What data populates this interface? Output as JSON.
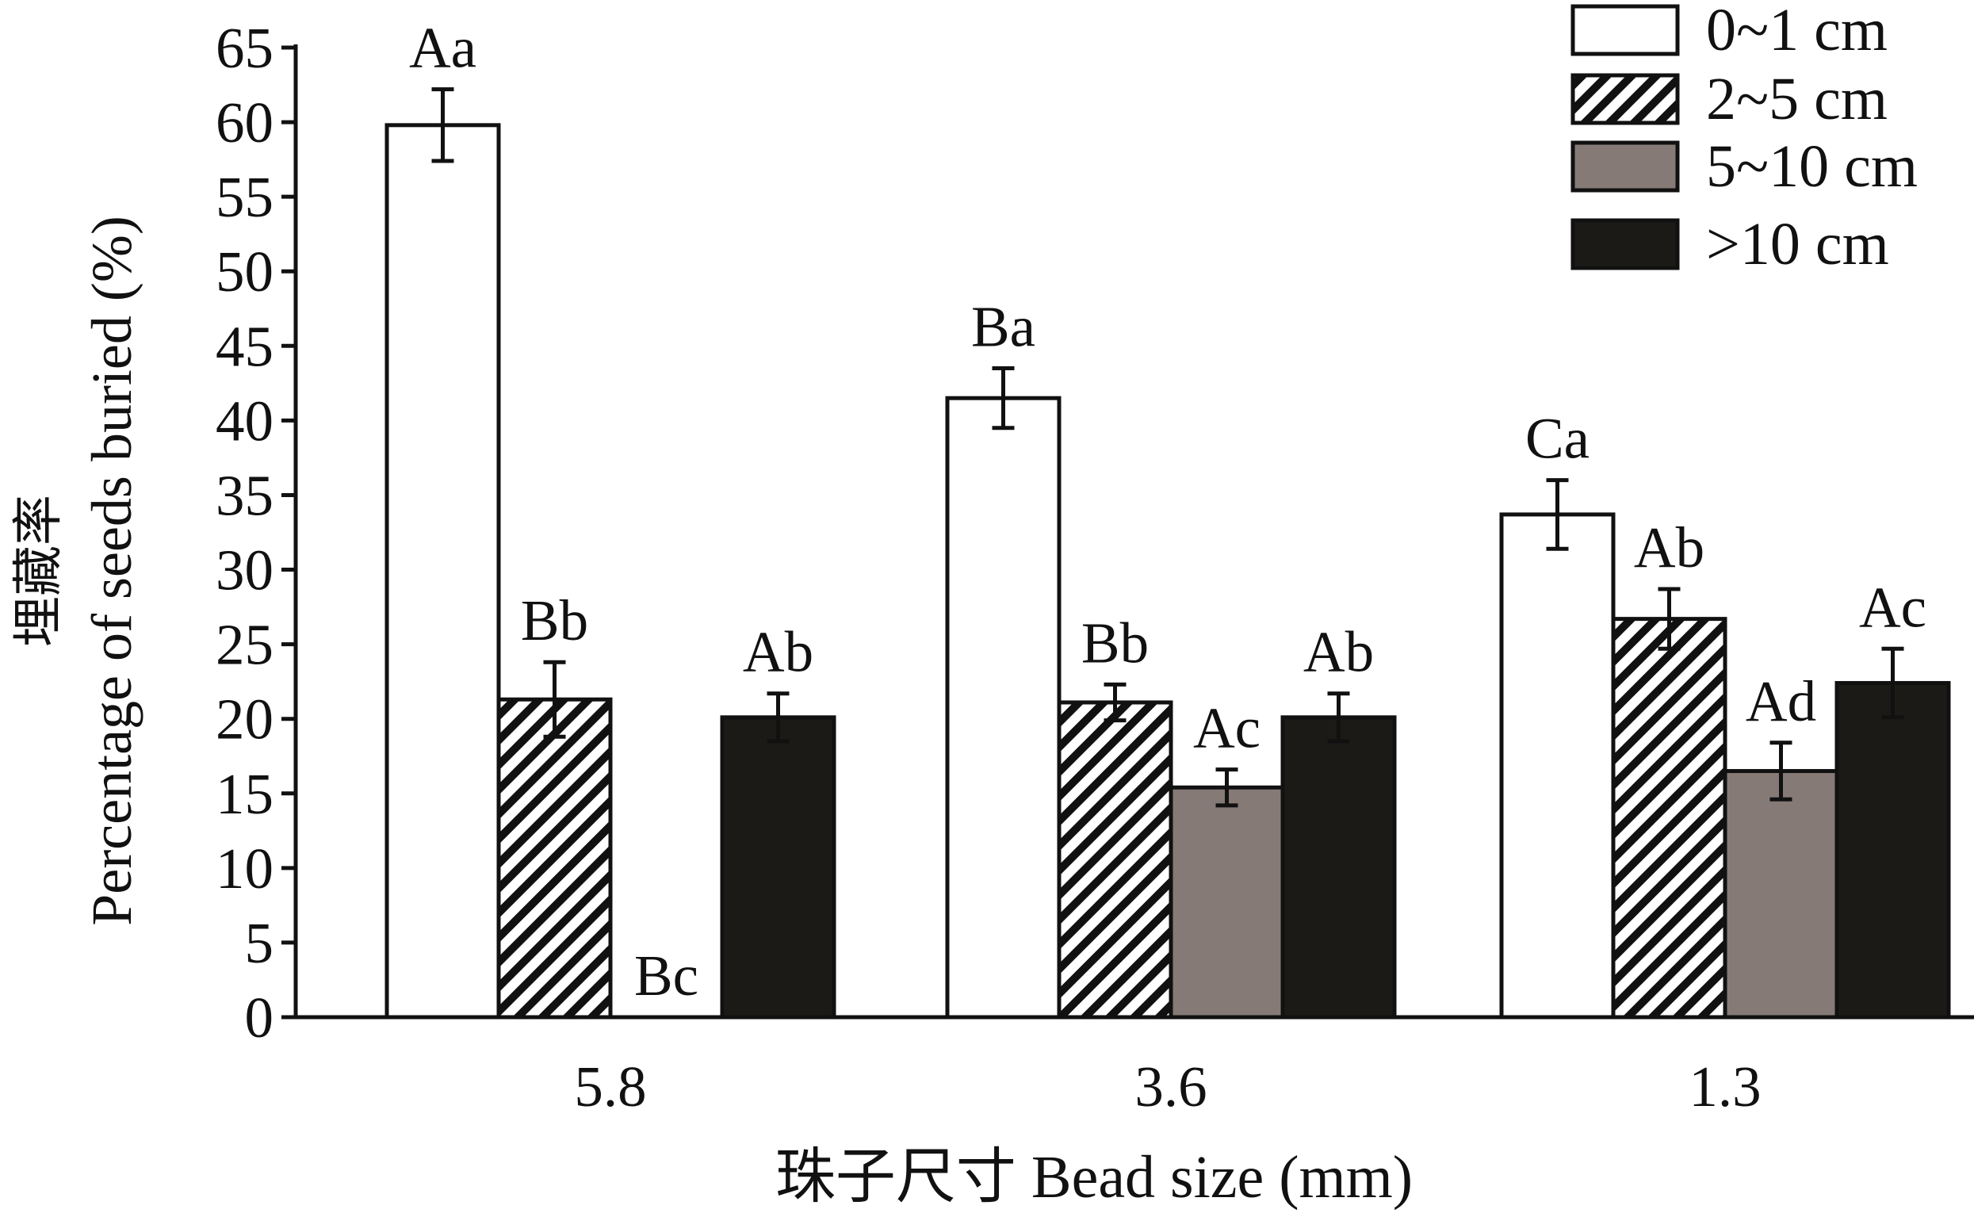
{
  "chart_data": {
    "type": "bar",
    "title": "",
    "xlabel": "珠子尺寸 Bead size (mm)",
    "ylabel_cn": "埋藏率",
    "ylabel": "Percentage of seeds buried (%)",
    "ylim": [
      0,
      65
    ],
    "yticks": [
      0,
      5,
      10,
      15,
      20,
      25,
      30,
      35,
      40,
      45,
      50,
      55,
      60,
      65
    ],
    "categories": [
      "5.8",
      "3.6",
      "1.3"
    ],
    "legend_position": "top-right",
    "series": [
      {
        "name": "0~1 cm",
        "fill": "white",
        "values": [
          59.8,
          41.5,
          33.7
        ],
        "errors": [
          2.4,
          2.0,
          2.3
        ],
        "labels": [
          "Aa",
          "Ba",
          "Ca"
        ]
      },
      {
        "name": "2~5 cm",
        "fill": "hatched",
        "values": [
          21.3,
          21.1,
          26.7
        ],
        "errors": [
          2.5,
          1.2,
          2.0
        ],
        "labels": [
          "Bb",
          "Bb",
          "Ab"
        ]
      },
      {
        "name": "5~10 cm",
        "fill": "#857a76",
        "values": [
          0,
          15.4,
          16.5
        ],
        "errors": [
          0,
          1.2,
          1.9
        ],
        "labels": [
          "Bc",
          "Ac",
          "Ad"
        ]
      },
      {
        "name": ">10 cm",
        "fill": "#1c1a17",
        "values": [
          20.1,
          20.1,
          22.4
        ],
        "errors": [
          1.6,
          1.6,
          2.3
        ],
        "labels": [
          "Ab",
          "Ab",
          "Ac"
        ]
      }
    ]
  }
}
